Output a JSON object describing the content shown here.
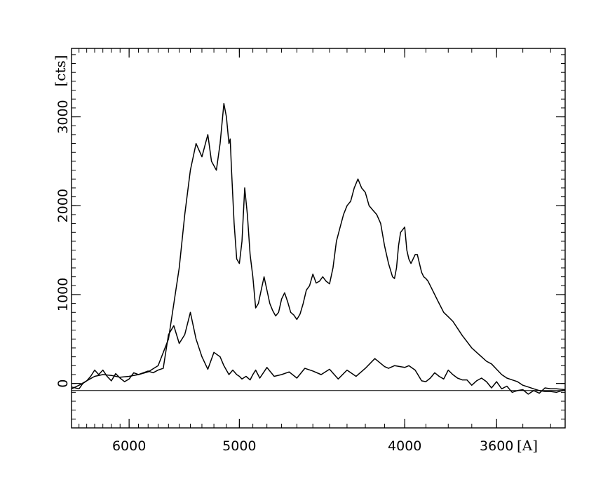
{
  "chart_data": {
    "type": "line",
    "title": "",
    "xlabel": "[A]",
    "ylabel": "[cts]",
    "x_scale": "reciprocal",
    "xlim": [
      6700,
      3350
    ],
    "ylim": [
      -500,
      3770
    ],
    "grid": false,
    "legend": "none",
    "x_ticks": [
      {
        "value": 6000,
        "label": "6000"
      },
      {
        "value": 5000,
        "label": "5000"
      },
      {
        "value": 4000,
        "label": "4000"
      },
      {
        "value": 3600,
        "label": "3600"
      }
    ],
    "y_ticks": [
      {
        "value": 0,
        "label": "0"
      },
      {
        "value": 1000,
        "label": "1000"
      },
      {
        "value": 2000,
        "label": "2000"
      },
      {
        "value": 3000,
        "label": "3000"
      }
    ],
    "reference_line": {
      "y": -80
    },
    "series": [
      {
        "style": "upper",
        "x": [
          6700,
          6600,
          6500,
          6400,
          6300,
          6200,
          6100,
          6000,
          5900,
          5800,
          5700,
          5600,
          5500,
          5450,
          5400,
          5350,
          5300,
          5270,
          5250,
          5220,
          5200,
          5180,
          5150,
          5120,
          5100,
          5080,
          5070,
          5060,
          5040,
          5020,
          5000,
          4980,
          4960,
          4940,
          4920,
          4900,
          4880,
          4860,
          4840,
          4820,
          4800,
          4780,
          4760,
          4740,
          4720,
          4700,
          4680,
          4660,
          4640,
          4620,
          4600,
          4580,
          4560,
          4540,
          4520,
          4500,
          4480,
          4460,
          4440,
          4420,
          4400,
          4380,
          4360,
          4340,
          4320,
          4300,
          4280,
          4260,
          4240,
          4220,
          4200,
          4180,
          4160,
          4140,
          4120,
          4100,
          4080,
          4060,
          4050,
          4040,
          4030,
          4020,
          4000,
          3990,
          3980,
          3970,
          3960,
          3950,
          3940,
          3930,
          3920,
          3910,
          3900,
          3890,
          3880,
          3870,
          3860,
          3850,
          3840,
          3820,
          3800,
          3780,
          3760,
          3740,
          3720,
          3700,
          3680,
          3660,
          3640,
          3620,
          3600,
          3580,
          3560,
          3540,
          3520,
          3500,
          3480,
          3460,
          3440,
          3420,
          3400,
          3380,
          3350
        ],
        "y": [
          -60,
          -20,
          30,
          80,
          100,
          90,
          70,
          80,
          100,
          130,
          200,
          500,
          1300,
          1900,
          2400,
          2700,
          2550,
          2700,
          2800,
          2500,
          2450,
          2400,
          2700,
          3150,
          3000,
          2700,
          2750,
          2400,
          1800,
          1400,
          1350,
          1600,
          2200,
          1900,
          1450,
          1200,
          850,
          900,
          1050,
          1200,
          1050,
          900,
          820,
          760,
          800,
          950,
          1020,
          920,
          800,
          770,
          720,
          780,
          900,
          1050,
          1100,
          1230,
          1130,
          1150,
          1200,
          1150,
          1120,
          1300,
          1600,
          1750,
          1900,
          2000,
          2050,
          2200,
          2300,
          2200,
          2150,
          2000,
          1950,
          1900,
          1800,
          1550,
          1350,
          1200,
          1180,
          1300,
          1550,
          1700,
          1760,
          1500,
          1400,
          1350,
          1400,
          1450,
          1450,
          1350,
          1250,
          1200,
          1180,
          1150,
          1100,
          1050,
          1000,
          950,
          900,
          800,
          750,
          700,
          620,
          540,
          470,
          400,
          350,
          300,
          250,
          220,
          160,
          100,
          60,
          40,
          20,
          -20,
          -40,
          -60,
          -80,
          -90,
          -90,
          -100,
          -70
        ]
      },
      {
        "style": "lower",
        "x": [
          6700,
          6600,
          6550,
          6500,
          6450,
          6400,
          6350,
          6300,
          6250,
          6200,
          6150,
          6100,
          6050,
          6000,
          5950,
          5900,
          5850,
          5800,
          5750,
          5700,
          5650,
          5600,
          5550,
          5500,
          5450,
          5400,
          5350,
          5300,
          5250,
          5200,
          5150,
          5120,
          5100,
          5080,
          5050,
          5020,
          5000,
          4980,
          4950,
          4920,
          4900,
          4880,
          4850,
          4800,
          4750,
          4700,
          4650,
          4600,
          4550,
          4500,
          4450,
          4400,
          4350,
          4300,
          4250,
          4200,
          4150,
          4100,
          4080,
          4050,
          4000,
          3980,
          3950,
          3920,
          3900,
          3880,
          3860,
          3840,
          3820,
          3800,
          3780,
          3760,
          3740,
          3720,
          3700,
          3680,
          3660,
          3640,
          3620,
          3600,
          3580,
          3560,
          3540,
          3520,
          3500,
          3480,
          3460,
          3440,
          3420,
          3400,
          3380,
          3350
        ],
        "y": [
          -40,
          -60,
          0,
          30,
          80,
          150,
          100,
          150,
          80,
          30,
          110,
          60,
          20,
          50,
          120,
          100,
          120,
          140,
          120,
          150,
          170,
          550,
          650,
          450,
          550,
          800,
          500,
          300,
          160,
          350,
          300,
          200,
          150,
          100,
          150,
          100,
          80,
          50,
          80,
          40,
          100,
          150,
          60,
          180,
          80,
          100,
          130,
          60,
          170,
          140,
          100,
          160,
          50,
          150,
          80,
          170,
          280,
          190,
          170,
          200,
          180,
          200,
          150,
          30,
          20,
          60,
          120,
          80,
          50,
          150,
          100,
          60,
          40,
          40,
          -20,
          30,
          60,
          20,
          -50,
          20,
          -60,
          -30,
          -100,
          -80,
          -70,
          -120,
          -80,
          -110,
          -50,
          -60,
          -60,
          -70
        ]
      }
    ]
  }
}
